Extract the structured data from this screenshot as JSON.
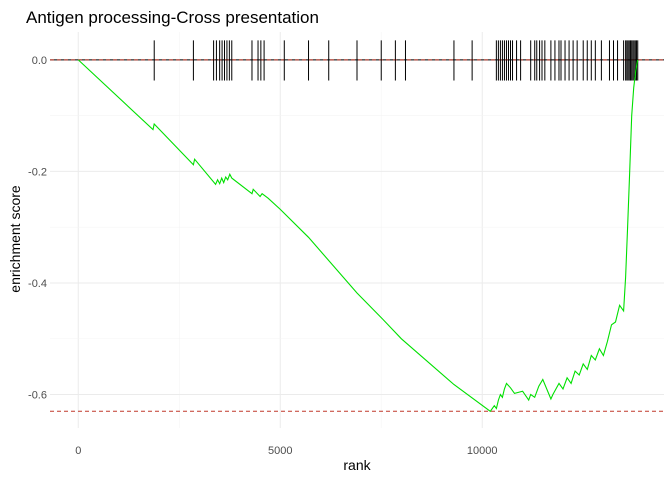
{
  "chart_data": {
    "type": "line",
    "title": "Antigen processing-Cross presentation",
    "xlabel": "rank",
    "ylabel": "enrichment score",
    "xlim": [
      -700,
      14500
    ],
    "ylim": [
      -0.66,
      0.05
    ],
    "x_ticks": [
      0,
      5000,
      10000
    ],
    "x_tick_labels": [
      "0",
      "5000",
      "10000"
    ],
    "y_ticks": [
      0.0,
      -0.2,
      -0.4,
      -0.6
    ],
    "y_tick_labels": [
      "0.0",
      "-0.2",
      "-0.4",
      "-0.6"
    ],
    "grid": true,
    "legend": "none",
    "series": [
      {
        "color": "#00e000",
        "x": [
          0,
          1850,
          1880,
          2850,
          2880,
          3400,
          3450,
          3500,
          3550,
          3600,
          3650,
          3700,
          3750,
          3800,
          4300,
          4330,
          4500,
          4550,
          4700,
          5000,
          5700,
          6900,
          7500,
          8000,
          9300,
          10200,
          10300,
          10350,
          10400,
          10450,
          10500,
          10550,
          10600,
          10700,
          10800,
          11000,
          11150,
          11200,
          11300,
          11400,
          11500,
          11700,
          11750,
          11900,
          12000,
          12100,
          12200,
          12300,
          12400,
          12500,
          12600,
          12700,
          12800,
          12900,
          13000,
          13100,
          13200,
          13300,
          13400,
          13500,
          13550,
          13600,
          13650,
          13700,
          13750,
          13800,
          13850
        ],
        "values": [
          0.0,
          -0.125,
          -0.115,
          -0.188,
          -0.178,
          -0.223,
          -0.215,
          -0.222,
          -0.212,
          -0.22,
          -0.21,
          -0.215,
          -0.205,
          -0.212,
          -0.24,
          -0.232,
          -0.245,
          -0.24,
          -0.248,
          -0.268,
          -0.318,
          -0.418,
          -0.462,
          -0.5,
          -0.582,
          -0.63,
          -0.62,
          -0.625,
          -0.61,
          -0.6,
          -0.605,
          -0.59,
          -0.58,
          -0.588,
          -0.598,
          -0.594,
          -0.61,
          -0.6,
          -0.605,
          -0.585,
          -0.573,
          -0.608,
          -0.6,
          -0.58,
          -0.59,
          -0.57,
          -0.58,
          -0.558,
          -0.565,
          -0.545,
          -0.555,
          -0.53,
          -0.538,
          -0.518,
          -0.53,
          -0.505,
          -0.475,
          -0.47,
          -0.44,
          -0.45,
          -0.39,
          -0.3,
          -0.2,
          -0.1,
          -0.05,
          -0.02,
          0.0
        ]
      }
    ],
    "reference_lines": [
      {
        "y": 0.0,
        "color": "#c0392b",
        "style": "dashed"
      },
      {
        "y": -0.63,
        "color": "#c0392b",
        "style": "dashed"
      }
    ],
    "baseline": {
      "y": 0.0,
      "color": "#000000"
    },
    "gene_hits": [
      1880,
      2850,
      3350,
      3420,
      3500,
      3560,
      3620,
      3680,
      3740,
      3800,
      4300,
      4450,
      4520,
      4600,
      5100,
      5700,
      6200,
      6900,
      7500,
      7850,
      8100,
      9300,
      9750,
      10350,
      10400,
      10450,
      10500,
      10550,
      10600,
      10650,
      10700,
      10750,
      10850,
      10950,
      11200,
      11300,
      11350,
      11420,
      11480,
      11550,
      11700,
      11800,
      11900,
      11950,
      12050,
      12150,
      12250,
      12350,
      12500,
      12600,
      12700,
      12800,
      12950,
      13150,
      13250,
      13350,
      13500,
      13550,
      13580,
      13610,
      13640,
      13670,
      13700,
      13730,
      13760,
      13790,
      13820,
      13850
    ]
  }
}
